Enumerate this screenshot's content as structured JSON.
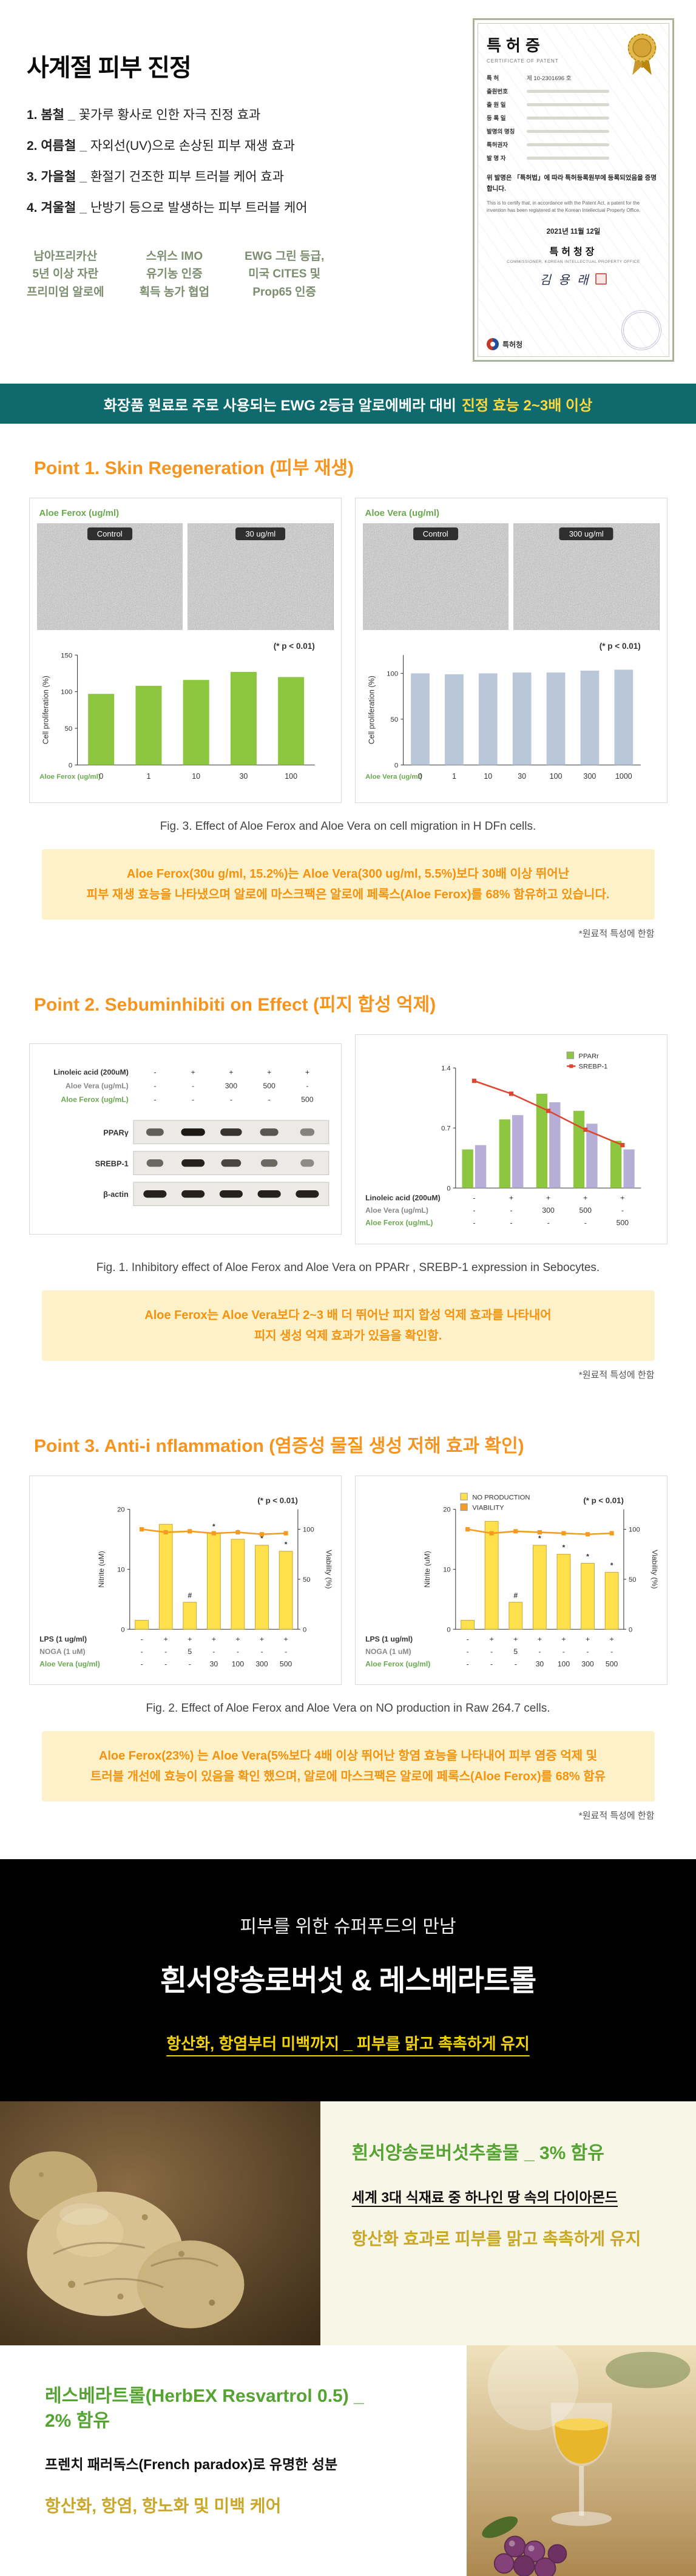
{
  "hero": {
    "title": "사계절 피부 진정",
    "separator": "_",
    "list": [
      {
        "lead": "1. 봄철",
        "rest": "꽃가루 황사로 인한 자극 진정 효과"
      },
      {
        "lead": "2. 여름철",
        "rest": "자외선(UV)으로 손상된 피부 재생 효과"
      },
      {
        "lead": "3. 가을철",
        "rest": "환절기 건조한 피부 트러블 케어 효과"
      },
      {
        "lead": "4. 겨울철",
        "rest": "난방기 등으로 발생하는 피부 트러블 케어"
      }
    ],
    "badges": [
      "남아프리카산\n5년 이상 자란\n프리미엄 알로에",
      "스위스 IMO\n유기농 인증\n획득 농가 협업",
      "EWG 그린 등급,\n미국 CITES 및\nProp65 인증"
    ]
  },
  "certificate": {
    "title": "특허증",
    "subtitle": "CERTIFICATE OF PATENT",
    "rows": [
      {
        "label": "특 허",
        "value": "제 10-2301696 호"
      },
      {
        "label": "출원번호",
        "value": ""
      },
      {
        "label": "출 원 일",
        "value": ""
      },
      {
        "label": "등 록 일",
        "value": ""
      },
      {
        "label": "발명의 명칭",
        "value": ""
      },
      {
        "label": "특허권자",
        "value": ""
      },
      {
        "label": "발 명 자",
        "value": ""
      }
    ],
    "statement_ko": "위 발명은 「특허법」에 따라 특허등록원부에 등록되었음을 증명합니다.",
    "statement_en": "This is to certify that, in accordance with the Patent Act, a patent for the invention has been registered at the Korean Intellectual Property Office.",
    "date": "2021년 11월 12일",
    "commissioner": "특허청장",
    "commissioner_en": "COMMISSIONER, KOREAN INTELLECTUAL PROPERTY OFFICE",
    "signer": "김 용 래",
    "office": "특허청"
  },
  "banner": {
    "part1": "화장품 원료로 주로 사용되는 EWG 2등급 알로에베라 대비",
    "part2": "진정 효능 2~3배 이상"
  },
  "point1": {
    "heading": "Point 1. Skin Regeneration (피부 재생)",
    "panels": [
      {
        "label": "Aloe Ferox (ug/ml)",
        "images": [
          "Control",
          "30 ug/ml"
        ]
      },
      {
        "label": "Aloe Vera (ug/ml)",
        "images": [
          "Control",
          "300 ug/ml"
        ]
      }
    ],
    "caption": "Fig. 3. Effect of Aloe Ferox and Aloe Vera on cell migration in H DFn cells.",
    "highlight": "Aloe Ferox(30u g/ml, 15.2%)는 Aloe Vera(300 ug/ml, 5.5%)보다 30배 이상 뛰어난\n피부 재생 효능을 나타냈으며 알로에 마스크팩은 알로에 페록스(Aloe Ferox)를 68% 함유하고 있습니다.",
    "note": "*원료적 특성에 한함"
  },
  "point2": {
    "heading": "Point 2. Sebuminhibiti on Effect (피지 합성 억제)",
    "caption": "Fig. 1. Inhibitory effect of Aloe Ferox and Aloe Vera on PPARr , SREBP-1 expression in Sebocytes.",
    "highlight": "Aloe Ferox는 Aloe Vera보다 2~3 배 더 뛰어난 피지 합성 억제 효과를 나타내어\n피지 생성 억제 효과가 있음을 확인함.",
    "note": "*원료적 특성에 한함"
  },
  "point3": {
    "heading": "Point 3. Anti-i nflammation (염증성 물질 생성 저해 효과 확인)",
    "caption": "Fig. 2. Effect of Aloe Ferox and Aloe Vera on NO production in Raw 264.7 cells.",
    "highlight": "Aloe Ferox(23%) 는 Aloe Vera(5%보다 4배 이상 뛰어난 항염 효능을 나타내어 피부 염증 억제 및\n트러블 개선에 효능이 있음을 확인 했으며, 알로에 마스크팩은 알로에 페록스(Aloe Ferox)를 68% 함유",
    "note": "*원료적 특성에 한함"
  },
  "superfood": {
    "line1": "피부를 위한 슈퍼푸드의 만남",
    "line2": "흰서양송로버섯 & 레스베라트롤",
    "line3": "항산화, 항염부터 미백까지 _ 피부를 맑고 촉촉하게 유지"
  },
  "truffle": {
    "title": "흰서양송로버섯추출물 _ 3% 함유",
    "sub": "세계 3대 식재료 중 하나인 땅 속의 다이아몬드",
    "desc": "항산화 효과로 피부를 맑고 촉촉하게 유지"
  },
  "resveratrol": {
    "title": "레스베라트롤(HerbEX Resvartrol 0.5) _\n2% 함유",
    "sub": "프렌치 패러독스(French paradox)로 유명한 성분",
    "desc": "항산화, 항염, 항노화 및 미백 케어"
  },
  "chart_data": [
    {
      "name": "ferox-cell-proliferation",
      "type": "bar",
      "categories": [
        "0",
        "1",
        "10",
        "30",
        "100"
      ],
      "series": [
        {
          "name": "Aloe Ferox",
          "values": [
            97,
            108,
            116,
            127,
            120
          ],
          "color": "#8dc63f"
        }
      ],
      "ylim": [
        0,
        150
      ],
      "yticks": [
        0,
        50,
        100,
        150
      ],
      "ylabel": "Cell proliferation (%)",
      "xlabel": "Aloe Ferox (ug/ml)",
      "xlabel_color": "#6aa84f",
      "p_note": "(* p < 0.01)"
    },
    {
      "name": "vera-cell-proliferation",
      "type": "bar",
      "categories": [
        "0",
        "1",
        "10",
        "30",
        "100",
        "300",
        "1000"
      ],
      "series": [
        {
          "name": "Aloe Vera",
          "values": [
            100,
            99,
            100,
            101,
            101,
            103,
            104
          ],
          "color": "#b9c7d8"
        }
      ],
      "ylim": [
        0,
        120
      ],
      "yticks": [
        0,
        50,
        100
      ],
      "ylabel": "Cell proliferation (%)",
      "xlabel": "Aloe Vera (ug/ml)",
      "xlabel_color": "#6aa84f",
      "p_note": "(* p < 0.01)"
    },
    {
      "name": "sebocyte-ppar-srebp-expression",
      "type": "bar",
      "categories": [
        "1",
        "2",
        "3",
        "4",
        "5"
      ],
      "series": [
        {
          "name": "PPARr",
          "values": [
            0.45,
            0.8,
            1.1,
            0.9,
            0.55
          ],
          "color": "#8dc63f"
        },
        {
          "name": "SREBP-1",
          "values": [
            0.5,
            0.85,
            1.0,
            0.75,
            0.45
          ],
          "color": "#b6aed6"
        }
      ],
      "line": {
        "name": "trend",
        "values": [
          1.25,
          1.1,
          0.9,
          0.68,
          0.5
        ],
        "color": "#e0452f",
        "axis": "left"
      },
      "ylim": [
        0,
        1.4
      ],
      "yticks": [
        0,
        0.7,
        1.4
      ],
      "legend": [
        {
          "label": "PPARr",
          "color": "#8dc63f",
          "type": "box"
        },
        {
          "label": "SREBP-1",
          "color": "#e0452f",
          "type": "line"
        }
      ],
      "legend_pos": "tr",
      "treatments": [
        {
          "label": "Linoleic acid (200uM)",
          "values": [
            "-",
            "+",
            "+",
            "+",
            "+"
          ]
        },
        {
          "label": "Aloe Vera (ug/mL)",
          "values": [
            "-",
            "-",
            "300",
            "500",
            "-"
          ],
          "color": "#888888"
        },
        {
          "label": "Aloe Ferox (ug/mL)",
          "values": [
            "-",
            "-",
            "-",
            "-",
            "500"
          ],
          "color": "#6aa84f"
        }
      ]
    },
    {
      "name": "no-production-aloe-vera",
      "type": "bar",
      "categories": [
        "1",
        "2",
        "3",
        "4",
        "5",
        "6",
        "7"
      ],
      "series": [
        {
          "name": "NO PRODUCTION",
          "values": [
            1.5,
            17.5,
            4.5,
            16,
            15,
            14,
            13
          ],
          "color": "#ffe14d",
          "stroke": "#caa83a"
        }
      ],
      "line": {
        "name": "VIABILITY",
        "values": [
          100,
          97,
          98,
          96,
          97,
          95,
          96
        ],
        "color": "#f59b20",
        "axis": "right"
      },
      "ylim": [
        0,
        20
      ],
      "yticks": [
        0,
        10,
        20
      ],
      "y2lim": [
        0,
        120
      ],
      "y2ticks": [
        0,
        50,
        100
      ],
      "ylabel": "Nitrite (uM)",
      "y2label": "Viability (%)",
      "p_note": "(* p < 0.01)",
      "annotations": [
        "",
        "",
        "#",
        "*",
        "*",
        "*",
        "*"
      ],
      "treatments": [
        {
          "label": "LPS (1 ug/ml)",
          "values": [
            "-",
            "+",
            "+",
            "+",
            "+",
            "+",
            "+"
          ]
        },
        {
          "label": "NOGA (1 uM)",
          "values": [
            "-",
            "-",
            "5",
            "-",
            "-",
            "-",
            "-"
          ],
          "color": "#888888"
        },
        {
          "label": "Aloe Vera (ug/ml)",
          "values": [
            "-",
            "-",
            "-",
            "30",
            "100",
            "300",
            "500"
          ],
          "color": "#6aa84f"
        }
      ]
    },
    {
      "name": "no-production-aloe-ferox",
      "type": "bar",
      "categories": [
        "1",
        "2",
        "3",
        "4",
        "5",
        "6",
        "7"
      ],
      "series": [
        {
          "name": "NO PRODUCTION",
          "values": [
            1.5,
            18,
            4.5,
            14,
            12.5,
            11,
            9.5
          ],
          "color": "#ffe14d",
          "stroke": "#caa83a"
        }
      ],
      "line": {
        "name": "VIABILITY",
        "values": [
          100,
          96,
          98,
          97,
          96,
          95,
          96
        ],
        "color": "#f59b20",
        "axis": "right"
      },
      "ylim": [
        0,
        20
      ],
      "yticks": [
        0,
        10,
        20
      ],
      "y2lim": [
        0,
        120
      ],
      "y2ticks": [
        0,
        50,
        100
      ],
      "ylabel": "Nitrite (uM)",
      "y2label": "Viability (%)",
      "p_note": "(* p < 0.01)",
      "annotations": [
        "",
        "",
        "#",
        "*",
        "*",
        "*",
        "*"
      ],
      "legend": [
        {
          "label": "NO PRODUCTION",
          "color": "#ffe14d",
          "type": "box"
        },
        {
          "label": "VIABILITY",
          "color": "#f59b20",
          "type": "box"
        }
      ],
      "legend_pos": "tl",
      "treatments": [
        {
          "label": "LPS (1 ug/ml)",
          "values": [
            "-",
            "+",
            "+",
            "+",
            "+",
            "+",
            "+"
          ]
        },
        {
          "label": "NOGA (1 uM)",
          "values": [
            "-",
            "-",
            "5",
            "-",
            "-",
            "-",
            "-"
          ],
          "color": "#888888"
        },
        {
          "label": "Aloe Ferox (ug/ml)",
          "values": [
            "-",
            "-",
            "-",
            "30",
            "100",
            "300",
            "500"
          ],
          "color": "#6aa84f"
        }
      ]
    }
  ],
  "blot": {
    "treatments": [
      {
        "label": "Linoleic acid (200uM)",
        "values": [
          "-",
          "+",
          "+",
          "+",
          "+"
        ]
      },
      {
        "label": "Aloe Vera (ug/mL)",
        "values": [
          "-",
          "-",
          "300",
          "500",
          "-"
        ],
        "color": "#888888"
      },
      {
        "label": "Aloe Ferox (ug/mL)",
        "values": [
          "-",
          "-",
          "-",
          "-",
          "500"
        ],
        "color": "#6aa84f"
      }
    ],
    "bands": [
      {
        "label": "PPARγ",
        "intensities": [
          0.55,
          0.95,
          0.8,
          0.6,
          0.35
        ]
      },
      {
        "label": "SREBP-1",
        "intensities": [
          0.5,
          0.9,
          0.7,
          0.5,
          0.3
        ]
      },
      {
        "label": "β-actin",
        "intensities": [
          0.9,
          0.9,
          0.9,
          0.9,
          0.9
        ]
      }
    ]
  },
  "colors": {
    "banner_bg": "#0e6a6c",
    "accent_orange": "#f7941d",
    "accent_green": "#55a332",
    "accent_yellow": "#f1d202",
    "highlight_bg": "#fcf1c9"
  }
}
